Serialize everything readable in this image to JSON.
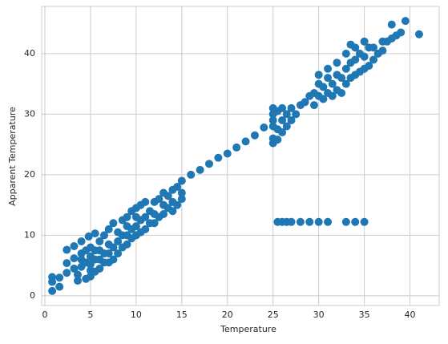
{
  "chart_data": {
    "type": "scatter",
    "x_label": "Temperature",
    "y_label": "Apparent Temperature",
    "color": "#1f77b4",
    "grid": true,
    "xlim": [
      -0.35,
      43.2
    ],
    "ylim": [
      -1.6,
      47.8
    ],
    "xticks": [
      0,
      5,
      10,
      15,
      20,
      25,
      30,
      35,
      40
    ],
    "yticks": [
      0,
      10,
      20,
      30,
      40
    ],
    "x": [
      0.8,
      0.8,
      0.8,
      1.6,
      1.6,
      2.4,
      2.4,
      2.4,
      3.2,
      3.2,
      3.2,
      3.6,
      3.6,
      4,
      4,
      4,
      4,
      4.5,
      4.5,
      4.5,
      4.8,
      5,
      5,
      5,
      5,
      5,
      5.5,
      5.5,
      5.5,
      5.5,
      6,
      6,
      6,
      6,
      6.5,
      6.5,
      6.5,
      7,
      7,
      7,
      7,
      7.5,
      7.5,
      7.5,
      8,
      8,
      8,
      8.5,
      8.5,
      8.5,
      9,
      9,
      9,
      9,
      9.5,
      9.5,
      9.5,
      10,
      10,
      10,
      10,
      10.5,
      10.5,
      10.5,
      11,
      11,
      11,
      11.5,
      11.5,
      12,
      12,
      12,
      12.5,
      12.5,
      13,
      13,
      13,
      13.5,
      13.5,
      14,
      14,
      14,
      14.5,
      14.5,
      15,
      15,
      15,
      16,
      17,
      18,
      19,
      20,
      21,
      22,
      23,
      24,
      25,
      25,
      25,
      25,
      25,
      25,
      25.5,
      25.5,
      25.5,
      26,
      26,
      26,
      26.5,
      26.5,
      27,
      27,
      27.5,
      28,
      28.5,
      29,
      29.5,
      29.5,
      30,
      30,
      30,
      30.5,
      30.5,
      31,
      31,
      31,
      31.5,
      31.5,
      32,
      32,
      32,
      32.5,
      32.5,
      33,
      33,
      33,
      33.5,
      33.5,
      33.5,
      34,
      34,
      34,
      34.5,
      34.5,
      35,
      35,
      35,
      35.5,
      35.5,
      36,
      36,
      36.5,
      37,
      37,
      37.5,
      38,
      38,
      38.5,
      39,
      39.5,
      41,
      25.5,
      26,
      26.5,
      27,
      28,
      29,
      30,
      31,
      33,
      34,
      35
    ],
    "values": [
      0.8,
      2.3,
      3.1,
      1.5,
      3.0,
      3.8,
      5.4,
      7.6,
      4.5,
      6.2,
      8.2,
      2.5,
      3.5,
      4.8,
      6,
      7,
      9,
      2.8,
      5.5,
      7.5,
      9.8,
      3.2,
      4.2,
      5.2,
      6.5,
      8,
      4,
      6,
      7.5,
      10.3,
      4.5,
      6,
      7.5,
      9,
      5.5,
      7,
      10,
      5.5,
      7,
      8.5,
      11,
      6,
      8,
      12,
      7,
      9,
      10.5,
      8,
      10,
      12.5,
      8.5,
      10,
      11.5,
      13,
      9.5,
      11,
      14,
      10,
      11.5,
      13,
      14.5,
      10.5,
      12.5,
      15,
      11,
      13,
      15.5,
      12,
      14,
      12,
      13.5,
      15.5,
      13,
      16,
      13.5,
      15,
      17,
      14.5,
      16.5,
      14,
      15.5,
      17.5,
      15,
      18,
      16,
      17,
      19,
      20,
      20.8,
      21.8,
      22.8,
      23.5,
      24.5,
      25.5,
      26.5,
      27.8,
      25.2,
      26,
      28,
      29,
      30,
      31,
      25.8,
      27.5,
      30.5,
      27,
      29,
      31,
      28,
      30,
      29,
      31,
      30,
      31.5,
      32,
      33,
      33.5,
      31.5,
      33,
      35,
      36.5,
      32.5,
      34.5,
      33.5,
      36,
      37.5,
      33,
      35,
      34,
      36.5,
      38.5,
      33.5,
      36,
      35,
      37.5,
      40,
      36,
      38.5,
      41.5,
      36.5,
      39,
      41,
      37,
      40,
      37.5,
      39.5,
      42,
      38,
      41,
      39,
      41,
      40,
      40.5,
      42,
      42,
      42.5,
      44.8,
      43,
      43.5,
      45.4,
      43.2,
      12.2,
      12.2,
      12.2,
      12.2,
      12.2,
      12.2,
      12.2,
      12.2,
      12.2,
      12.2,
      12.2
    ]
  }
}
